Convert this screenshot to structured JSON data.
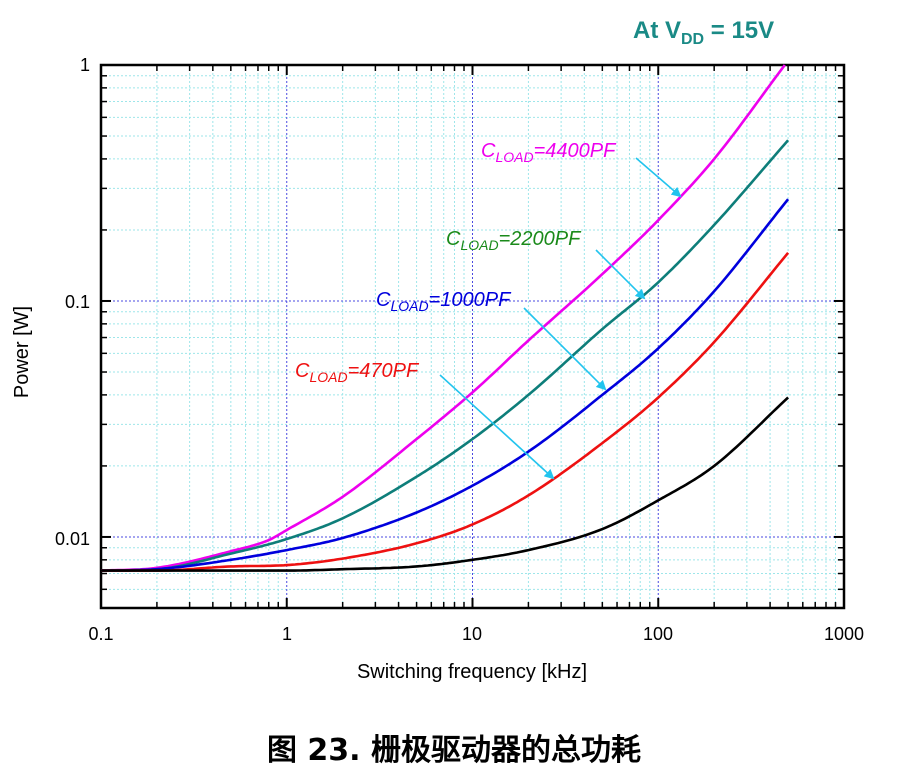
{
  "chart_data": {
    "type": "line",
    "condition": {
      "prefix": "At V",
      "subscript": "DD",
      "suffix": " = 15V",
      "color": "#1a8a86"
    },
    "xlabel": "Switching frequency [kHz]",
    "ylabel": "Power [W]",
    "xscale": "log",
    "yscale": "log",
    "xlim": [
      0.1,
      1000
    ],
    "ylim": [
      0.005,
      1
    ],
    "xticks": [
      0.1,
      1,
      10,
      100,
      1000
    ],
    "xtick_labels": [
      "0.1",
      "1",
      "10",
      "100",
      "1000"
    ],
    "yticks": [
      0.01,
      0.1,
      1
    ],
    "ytick_labels": [
      "0.01",
      "0.1",
      "1"
    ],
    "grid": true,
    "series": [
      {
        "name": "CLOAD=4400PF",
        "color": "#ee00ee",
        "x": [
          0.1,
          0.2,
          0.5,
          0.8,
          1,
          2,
          5,
          10,
          20,
          50,
          100,
          200,
          480
        ],
        "y": [
          0.0072,
          0.0074,
          0.0087,
          0.0097,
          0.0107,
          0.0148,
          0.026,
          0.041,
          0.068,
          0.13,
          0.22,
          0.4,
          1.0
        ]
      },
      {
        "name": "CLOAD=2200PF",
        "color": "#0e7e7a",
        "x": [
          0.1,
          0.2,
          0.5,
          1,
          2,
          5,
          10,
          20,
          50,
          100,
          200,
          500
        ],
        "y": [
          0.0072,
          0.0073,
          0.0085,
          0.0098,
          0.012,
          0.018,
          0.026,
          0.04,
          0.076,
          0.12,
          0.21,
          0.48
        ]
      },
      {
        "name": "CLOAD=1000PF",
        "color": "#0000dd",
        "x": [
          0.1,
          0.2,
          0.5,
          1,
          2,
          5,
          10,
          20,
          50,
          100,
          200,
          500
        ],
        "y": [
          0.0072,
          0.0073,
          0.008,
          0.0088,
          0.0099,
          0.0127,
          0.0165,
          0.023,
          0.04,
          0.063,
          0.11,
          0.27
        ]
      },
      {
        "name": "CLOAD=470PF",
        "color": "#ee1111",
        "x": [
          0.1,
          0.2,
          0.5,
          1,
          2,
          5,
          10,
          20,
          50,
          100,
          200,
          500
        ],
        "y": [
          0.0072,
          0.0072,
          0.0075,
          0.0076,
          0.0081,
          0.0094,
          0.0113,
          0.015,
          0.025,
          0.039,
          0.067,
          0.16
        ]
      },
      {
        "name": "unlabeled",
        "color": "#000000",
        "x": [
          0.1,
          0.5,
          1,
          2,
          5,
          10,
          20,
          50,
          100,
          200,
          500
        ],
        "y": [
          0.0072,
          0.0072,
          0.0072,
          0.0073,
          0.0075,
          0.008,
          0.0088,
          0.0108,
          0.0143,
          0.02,
          0.039
        ]
      }
    ],
    "annotations": [
      {
        "base": "C",
        "sub": "LOAD",
        "value": "=4400PF",
        "color": "#ee00ee"
      },
      {
        "base": "C",
        "sub": "LOAD",
        "value": "=2200PF",
        "color": "#1a8a1a"
      },
      {
        "base": "C",
        "sub": "LOAD",
        "value": "=1000PF",
        "color": "#0000dd"
      },
      {
        "base": "C",
        "sub": "LOAD",
        "value": "=470PF",
        "color": "#ee1111"
      }
    ],
    "arrow_color": "#22c4ee"
  },
  "caption": "图 23. 栅极驱动器的总功耗"
}
